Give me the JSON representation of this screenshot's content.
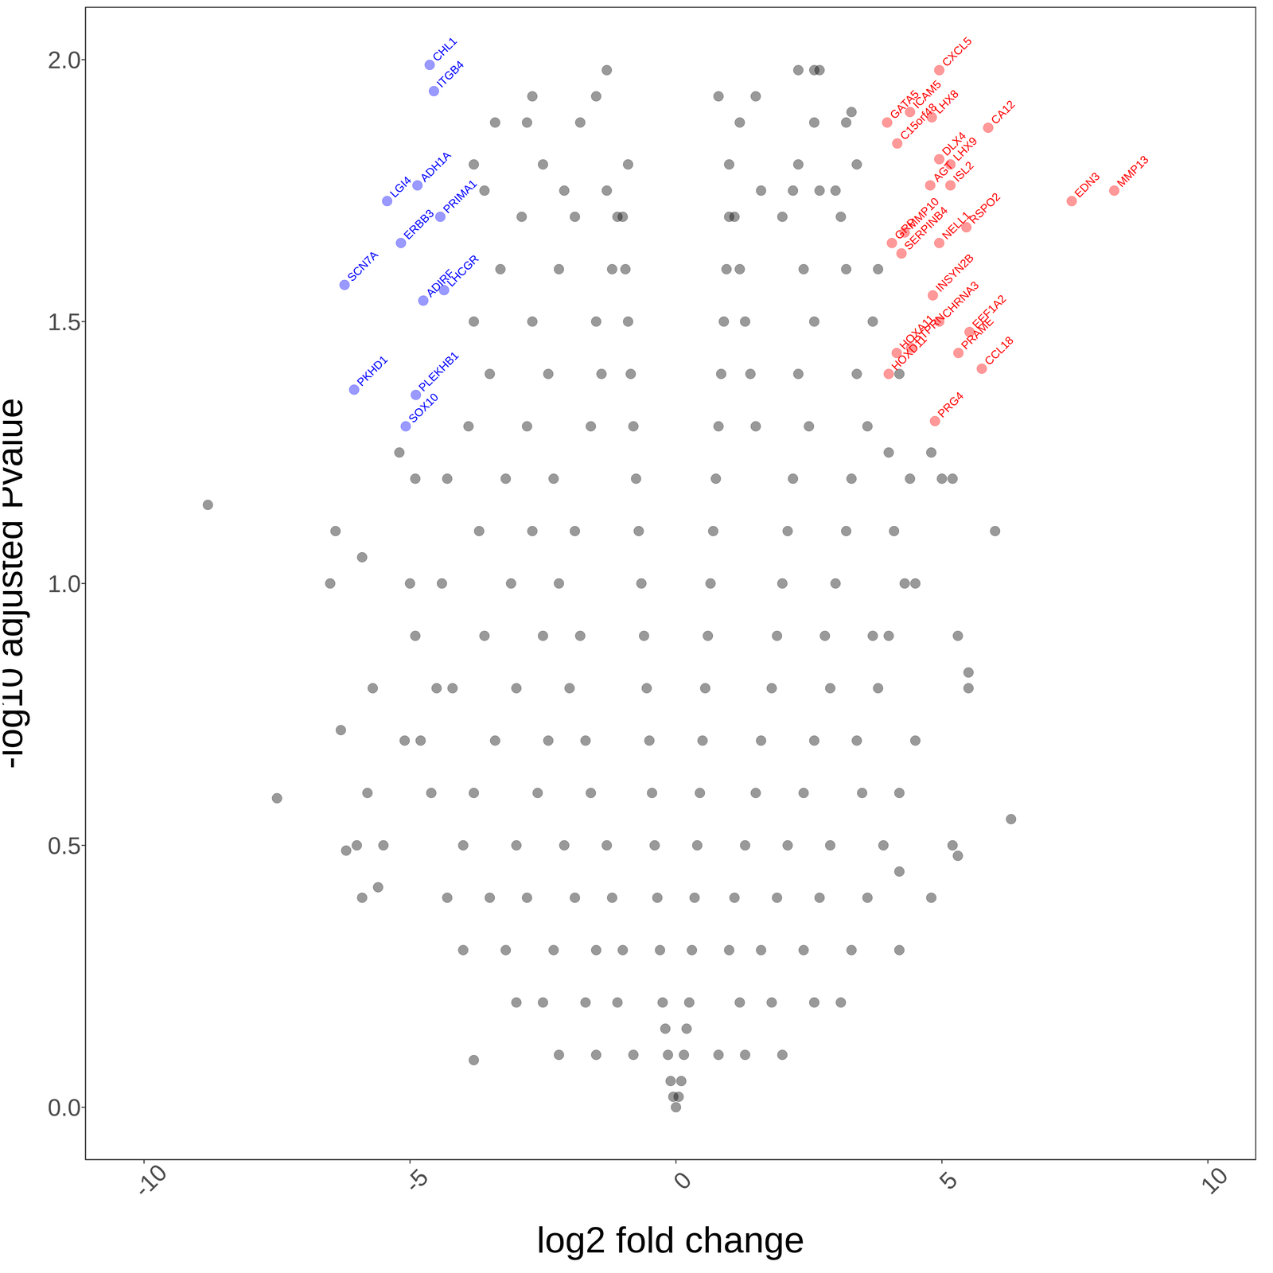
{
  "chart_data": {
    "type": "scatter",
    "x_label": "log2 fold change",
    "y_label": "-log10 adjusted Pvalue",
    "xlim": [
      -11.1,
      10.9
    ],
    "ylim": [
      -0.1,
      2.1
    ],
    "xticks": [
      -10,
      -5,
      0,
      5,
      10
    ],
    "yticks": [
      {
        "value": 0,
        "label": "0.0"
      },
      {
        "value": 0.5,
        "label": "0.5"
      },
      {
        "value": 1,
        "label": "1.0"
      },
      {
        "value": 1.5,
        "label": "1.5"
      },
      {
        "value": 2,
        "label": "2.0"
      }
    ],
    "grid": false,
    "series": [
      {
        "color": "#000000",
        "marker": "circle",
        "points": [
          [
            0,
            0
          ],
          [
            0.05,
            0.02
          ],
          [
            -0.05,
            0.02
          ],
          [
            0.1,
            0.05
          ],
          [
            -0.1,
            0.05
          ],
          [
            0.15,
            0.1
          ],
          [
            -0.15,
            0.1
          ],
          [
            0.2,
            0.15
          ],
          [
            -0.2,
            0.15
          ],
          [
            0.25,
            0.2
          ],
          [
            -0.25,
            0.2
          ],
          [
            0.3,
            0.3
          ],
          [
            -0.3,
            0.3
          ],
          [
            0.35,
            0.4
          ],
          [
            -0.35,
            0.4
          ],
          [
            0.4,
            0.5
          ],
          [
            -0.4,
            0.5
          ],
          [
            0.45,
            0.6
          ],
          [
            -0.45,
            0.6
          ],
          [
            0.5,
            0.7
          ],
          [
            -0.5,
            0.7
          ],
          [
            0.55,
            0.8
          ],
          [
            -0.55,
            0.8
          ],
          [
            0.6,
            0.9
          ],
          [
            -0.6,
            0.9
          ],
          [
            0.65,
            1.0
          ],
          [
            -0.65,
            1.0
          ],
          [
            0.7,
            1.1
          ],
          [
            -0.7,
            1.1
          ],
          [
            0.75,
            1.2
          ],
          [
            -0.75,
            1.2
          ],
          [
            0.8,
            1.3
          ],
          [
            -0.8,
            1.3
          ],
          [
            0.85,
            1.4
          ],
          [
            -0.85,
            1.4
          ],
          [
            0.9,
            1.5
          ],
          [
            -0.9,
            1.5
          ],
          [
            0.95,
            1.6
          ],
          [
            -0.95,
            1.6
          ],
          [
            1.0,
            1.7
          ],
          [
            -1.0,
            1.7
          ],
          [
            -1.5,
            0.1
          ],
          [
            -0.8,
            0.1
          ],
          [
            0.8,
            0.1
          ],
          [
            1.3,
            0.1
          ],
          [
            -2.2,
            0.1
          ],
          [
            2.0,
            0.1
          ],
          [
            -2.5,
            0.2
          ],
          [
            -1.7,
            0.2
          ],
          [
            -1.1,
            0.2
          ],
          [
            1.2,
            0.2
          ],
          [
            1.8,
            0.2
          ],
          [
            2.6,
            0.2
          ],
          [
            -3.0,
            0.2
          ],
          [
            3.1,
            0.2
          ],
          [
            -3.2,
            0.3
          ],
          [
            -2.3,
            0.3
          ],
          [
            -1.5,
            0.3
          ],
          [
            -1.0,
            0.3
          ],
          [
            1.0,
            0.3
          ],
          [
            1.6,
            0.3
          ],
          [
            2.4,
            0.3
          ],
          [
            3.3,
            0.3
          ],
          [
            -4.0,
            0.3
          ],
          [
            4.2,
            0.3
          ],
          [
            -3.5,
            0.4
          ],
          [
            -2.8,
            0.4
          ],
          [
            -1.9,
            0.4
          ],
          [
            -1.2,
            0.4
          ],
          [
            1.1,
            0.4
          ],
          [
            1.9,
            0.4
          ],
          [
            2.7,
            0.4
          ],
          [
            3.6,
            0.4
          ],
          [
            -4.3,
            0.4
          ],
          [
            -5.9,
            0.4
          ],
          [
            4.8,
            0.4
          ],
          [
            -4.0,
            0.5
          ],
          [
            -3.0,
            0.5
          ],
          [
            -2.1,
            0.5
          ],
          [
            -1.3,
            0.5
          ],
          [
            1.3,
            0.5
          ],
          [
            2.1,
            0.5
          ],
          [
            2.9,
            0.5
          ],
          [
            3.9,
            0.5
          ],
          [
            -5.5,
            0.5
          ],
          [
            -6.0,
            0.5
          ],
          [
            5.2,
            0.5
          ],
          [
            -3.8,
            0.6
          ],
          [
            -2.6,
            0.6
          ],
          [
            -1.6,
            0.6
          ],
          [
            1.5,
            0.6
          ],
          [
            2.4,
            0.6
          ],
          [
            3.5,
            0.6
          ],
          [
            4.2,
            0.6
          ],
          [
            -5.8,
            0.6
          ],
          [
            -4.6,
            0.6
          ],
          [
            -3.4,
            0.7
          ],
          [
            -2.4,
            0.7
          ],
          [
            -1.7,
            0.7
          ],
          [
            1.6,
            0.7
          ],
          [
            2.6,
            0.7
          ],
          [
            3.4,
            0.7
          ],
          [
            4.5,
            0.7
          ],
          [
            -5.1,
            0.7
          ],
          [
            -4.8,
            0.7
          ],
          [
            -4.2,
            0.8
          ],
          [
            -3.0,
            0.8
          ],
          [
            -2.0,
            0.8
          ],
          [
            1.8,
            0.8
          ],
          [
            2.9,
            0.8
          ],
          [
            3.8,
            0.8
          ],
          [
            -5.7,
            0.8
          ],
          [
            -4.5,
            0.8
          ],
          [
            5.5,
            0.8
          ],
          [
            -3.6,
            0.9
          ],
          [
            -2.5,
            0.9
          ],
          [
            -1.8,
            0.9
          ],
          [
            1.9,
            0.9
          ],
          [
            2.8,
            0.9
          ],
          [
            3.7,
            0.9
          ],
          [
            5.3,
            0.9
          ],
          [
            -4.9,
            0.9
          ],
          [
            4.0,
            0.9
          ],
          [
            -4.4,
            1.0
          ],
          [
            -3.1,
            1.0
          ],
          [
            -2.2,
            1.0
          ],
          [
            2.0,
            1.0
          ],
          [
            3.0,
            1.0
          ],
          [
            4.3,
            1.0
          ],
          [
            -5.0,
            1.0
          ],
          [
            -6.5,
            1.0
          ],
          [
            4.5,
            1.0
          ],
          [
            -3.7,
            1.1
          ],
          [
            -2.7,
            1.1
          ],
          [
            -1.9,
            1.1
          ],
          [
            2.1,
            1.1
          ],
          [
            3.2,
            1.1
          ],
          [
            4.1,
            1.1
          ],
          [
            -6.4,
            1.1
          ],
          [
            6.0,
            1.1
          ],
          [
            -5.9,
            1.05
          ],
          [
            -4.3,
            1.2
          ],
          [
            -3.2,
            1.2
          ],
          [
            -2.3,
            1.2
          ],
          [
            2.2,
            1.2
          ],
          [
            3.3,
            1.2
          ],
          [
            4.4,
            1.2
          ],
          [
            -4.9,
            1.2
          ],
          [
            5.0,
            1.2
          ],
          [
            -3.9,
            1.3
          ],
          [
            -2.8,
            1.3
          ],
          [
            -1.6,
            1.3
          ],
          [
            1.5,
            1.3
          ],
          [
            2.5,
            1.3
          ],
          [
            3.6,
            1.3
          ],
          [
            4.8,
            1.25
          ],
          [
            -5.2,
            1.25
          ],
          [
            -3.5,
            1.4
          ],
          [
            -2.4,
            1.4
          ],
          [
            -1.4,
            1.4
          ],
          [
            1.4,
            1.4
          ],
          [
            2.3,
            1.4
          ],
          [
            3.4,
            1.4
          ],
          [
            4.2,
            1.4
          ],
          [
            -3.8,
            1.5
          ],
          [
            -2.7,
            1.5
          ],
          [
            -1.5,
            1.5
          ],
          [
            1.3,
            1.5
          ],
          [
            2.6,
            1.5
          ],
          [
            3.7,
            1.5
          ],
          [
            -3.3,
            1.6
          ],
          [
            -2.2,
            1.6
          ],
          [
            -1.2,
            1.6
          ],
          [
            1.2,
            1.6
          ],
          [
            2.4,
            1.6
          ],
          [
            3.2,
            1.6
          ],
          [
            3.8,
            1.6
          ],
          [
            -2.9,
            1.7
          ],
          [
            -1.9,
            1.7
          ],
          [
            -1.1,
            1.7
          ],
          [
            1.1,
            1.7
          ],
          [
            2.0,
            1.7
          ],
          [
            3.1,
            1.7
          ],
          [
            -3.6,
            1.75
          ],
          [
            -2.1,
            1.75
          ],
          [
            -1.3,
            1.75
          ],
          [
            1.6,
            1.75
          ],
          [
            2.2,
            1.75
          ],
          [
            2.7,
            1.75
          ],
          [
            3.0,
            1.75
          ],
          [
            -3.8,
            1.8
          ],
          [
            -2.5,
            1.8
          ],
          [
            -0.9,
            1.8
          ],
          [
            1.0,
            1.8
          ],
          [
            2.3,
            1.8
          ],
          [
            3.4,
            1.8
          ],
          [
            -3.4,
            1.88
          ],
          [
            -2.8,
            1.88
          ],
          [
            -1.8,
            1.88
          ],
          [
            1.2,
            1.88
          ],
          [
            2.6,
            1.88
          ],
          [
            3.2,
            1.88
          ],
          [
            -2.7,
            1.93
          ],
          [
            -1.5,
            1.93
          ],
          [
            0.8,
            1.93
          ],
          [
            1.5,
            1.93
          ],
          [
            3.3,
            1.9
          ],
          [
            -1.3,
            1.98
          ],
          [
            2.3,
            1.98
          ],
          [
            2.6,
            1.98
          ],
          [
            2.7,
            1.98
          ],
          [
            -8.8,
            1.15
          ],
          [
            -7.5,
            0.59
          ],
          [
            -6.3,
            0.72
          ],
          [
            -6.2,
            0.49
          ],
          [
            -5.6,
            0.42
          ],
          [
            -3.8,
            0.09
          ],
          [
            6.3,
            0.55
          ],
          [
            5.5,
            0.83
          ],
          [
            5.3,
            0.48
          ],
          [
            4.2,
            0.45
          ],
          [
            4.0,
            1.25
          ],
          [
            5.2,
            1.2
          ]
        ]
      },
      {
        "color": "#0000ff",
        "marker": "circle",
        "labels": [
          "CHL1",
          "ITGB4",
          "LGI4",
          "ADH1A",
          "PRIMA1",
          "ERBB3",
          "SCN7A",
          "ADIRF",
          "LHCGR",
          "PKHD1",
          "PLEKHB1",
          "SOX10"
        ],
        "points": [
          [
            -4.63,
            1.99
          ],
          [
            -4.55,
            1.94
          ],
          [
            -5.43,
            1.73
          ],
          [
            -4.86,
            1.76
          ],
          [
            -4.43,
            1.7
          ],
          [
            -5.17,
            1.65
          ],
          [
            -6.23,
            1.57
          ],
          [
            -4.75,
            1.54
          ],
          [
            -4.36,
            1.56
          ],
          [
            -6.05,
            1.37
          ],
          [
            -4.89,
            1.36
          ],
          [
            -5.08,
            1.3
          ]
        ]
      },
      {
        "color": "#ff0000",
        "marker": "circle",
        "labels": [
          "CXCL5",
          "GATA5",
          "ICAM5",
          "C15orf48",
          "LHX8",
          "CA12",
          "LHX9",
          "ISL2",
          "AGT",
          "DLX4",
          "EDN3",
          "MMP13",
          "GRP",
          "SERPINB4",
          "MMP10",
          "NELL1",
          "RSPO2",
          "INSYN2B",
          "CHRNA3",
          "PTPRN",
          "HOXA11",
          "HOXD11",
          "EEF1A2",
          "PRAME",
          "CCL18",
          "PRG4"
        ],
        "points": [
          [
            4.95,
            1.98
          ],
          [
            3.97,
            1.88
          ],
          [
            4.4,
            1.9
          ],
          [
            4.16,
            1.84
          ],
          [
            4.81,
            1.89
          ],
          [
            5.87,
            1.87
          ],
          [
            5.16,
            1.8
          ],
          [
            5.16,
            1.76
          ],
          [
            4.78,
            1.76
          ],
          [
            4.95,
            1.81
          ],
          [
            7.44,
            1.73
          ],
          [
            8.24,
            1.75
          ],
          [
            4.06,
            1.65
          ],
          [
            4.24,
            1.63
          ],
          [
            4.3,
            1.67
          ],
          [
            4.95,
            1.65
          ],
          [
            5.46,
            1.68
          ],
          [
            4.83,
            1.55
          ],
          [
            4.95,
            1.5
          ],
          [
            4.42,
            1.45
          ],
          [
            4.15,
            1.44
          ],
          [
            4.0,
            1.4
          ],
          [
            5.52,
            1.48
          ],
          [
            5.31,
            1.44
          ],
          [
            5.75,
            1.41
          ],
          [
            4.87,
            1.31
          ]
        ]
      }
    ]
  }
}
